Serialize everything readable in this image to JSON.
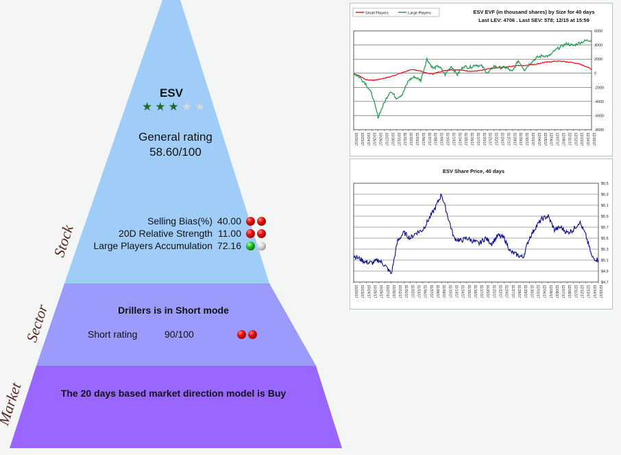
{
  "stock": {
    "label": "Stock",
    "ticker": "ESV",
    "stars_filled": 3,
    "stars_total": 5,
    "general_rating_label": "General rating",
    "general_rating_value": "58.60/100",
    "metrics": [
      {
        "label": "Selling Bias(%)",
        "value": "40.00",
        "lights": [
          "red",
          "red"
        ]
      },
      {
        "label": "20D Relative Strength",
        "value": "11.00",
        "lights": [
          "red",
          "red"
        ]
      },
      {
        "label": "Large Players Accumulation",
        "value": "72.16",
        "lights": [
          "green",
          "gray"
        ]
      }
    ]
  },
  "sector": {
    "label": "Sector",
    "mode_text": "Drillers is in Short mode",
    "rating_label": "Short rating",
    "rating_value": "90/100",
    "lights": [
      "red",
      "red"
    ]
  },
  "market": {
    "label": "Market",
    "text": "The 20 days based market direction model is Buy"
  },
  "colors": {
    "stock_fill": "#9fcdf8",
    "sector_fill": "#9b9bfb",
    "market_fill": "#9966ff",
    "small_players": "#e8121a",
    "large_players": "#2a9a55",
    "share_price": "#0a0a8a"
  },
  "dates": [
    "10/20/17",
    "10/23/17",
    "10/24/17",
    "10/25/17",
    "10/26/17",
    "10/27/17",
    "10/30/17",
    "10/31/17",
    "11/01/17",
    "11/02/17",
    "11/03/17",
    "11/06/17",
    "11/07/17",
    "11/08/17",
    "11/09/17",
    "11/10/17",
    "11/13/17",
    "11/14/17",
    "11/15/17",
    "11/16/17",
    "11/17/17",
    "11/20/17",
    "11/21/17",
    "11/22/17",
    "11/24/17",
    "11/27/17",
    "11/28/17",
    "11/29/17",
    "11/30/17",
    "12/01/17",
    "12/04/17",
    "12/05/17",
    "12/06/17",
    "12/07/17",
    "12/08/17",
    "12/11/17",
    "12/12/17",
    "12/13/17",
    "12/14/17",
    "12/15/17"
  ],
  "chart_data": [
    {
      "type": "line",
      "title": "ESV EVF (in thousand shares) by Size for 40 days",
      "subtitle": "Last LEV: 4706 . Last SEV: 578; 12/15 at 15:59",
      "ylim": [
        -8000,
        6000
      ],
      "yticks": [
        "6000",
        "4000",
        "2000",
        "0",
        "-2000",
        "-4000",
        "-6000",
        "-8000"
      ],
      "ytick_values": [
        6000,
        4000,
        2000,
        0,
        -2000,
        -4000,
        -6000,
        -8000
      ],
      "legend_position": "top-left",
      "series": [
        {
          "name": "Small Players",
          "color": "#e8121a",
          "values": [
            0,
            -400,
            -900,
            -1000,
            -900,
            -700,
            -500,
            -200,
            100,
            400,
            500,
            300,
            0,
            -100,
            200,
            400,
            500,
            500,
            400,
            300,
            300,
            400,
            600,
            700,
            800,
            900,
            1000,
            1100,
            1100,
            1200,
            1300,
            1500,
            1600,
            1700,
            1700,
            1600,
            1500,
            1300,
            1000,
            578
          ]
        },
        {
          "name": "Large Players",
          "color": "#2a9a55",
          "values": [
            0,
            -600,
            -1500,
            -3000,
            -6200,
            -4200,
            -2500,
            -3500,
            -3000,
            -1000,
            -500,
            -1000,
            2000,
            700,
            1000,
            -200,
            1000,
            -200,
            1000,
            800,
            1200,
            1000,
            0,
            1000,
            800,
            800,
            200,
            1800,
            500,
            1500,
            2200,
            2500,
            2400,
            3200,
            3800,
            4200,
            3900,
            4300,
            4600,
            4706
          ]
        }
      ]
    },
    {
      "type": "line",
      "title": "ESV Share Price, 40 days",
      "ylim": [
        4.7,
        6.5
      ],
      "yticks": [
        "$6.5",
        "$6.3",
        "$6.1",
        "$5.9",
        "$5.7",
        "$5.5",
        "$5.3",
        "$5.1",
        "$4.9",
        "$4.7"
      ],
      "ytick_values": [
        6.5,
        6.3,
        6.1,
        5.9,
        5.7,
        5.5,
        5.3,
        5.1,
        4.9,
        4.7
      ],
      "series": [
        {
          "name": "",
          "color": "#0a0a8a",
          "values": [
            5.18,
            5.12,
            5.06,
            5.05,
            5.1,
            5.0,
            4.85,
            5.45,
            5.6,
            5.5,
            5.6,
            5.65,
            5.85,
            6.05,
            6.3,
            5.9,
            5.5,
            5.45,
            5.5,
            5.45,
            5.4,
            5.5,
            5.4,
            5.55,
            5.5,
            5.25,
            5.2,
            5.15,
            5.5,
            5.7,
            5.85,
            5.9,
            5.65,
            5.7,
            5.6,
            5.65,
            5.8,
            5.55,
            5.15,
            5.1
          ]
        }
      ]
    }
  ]
}
